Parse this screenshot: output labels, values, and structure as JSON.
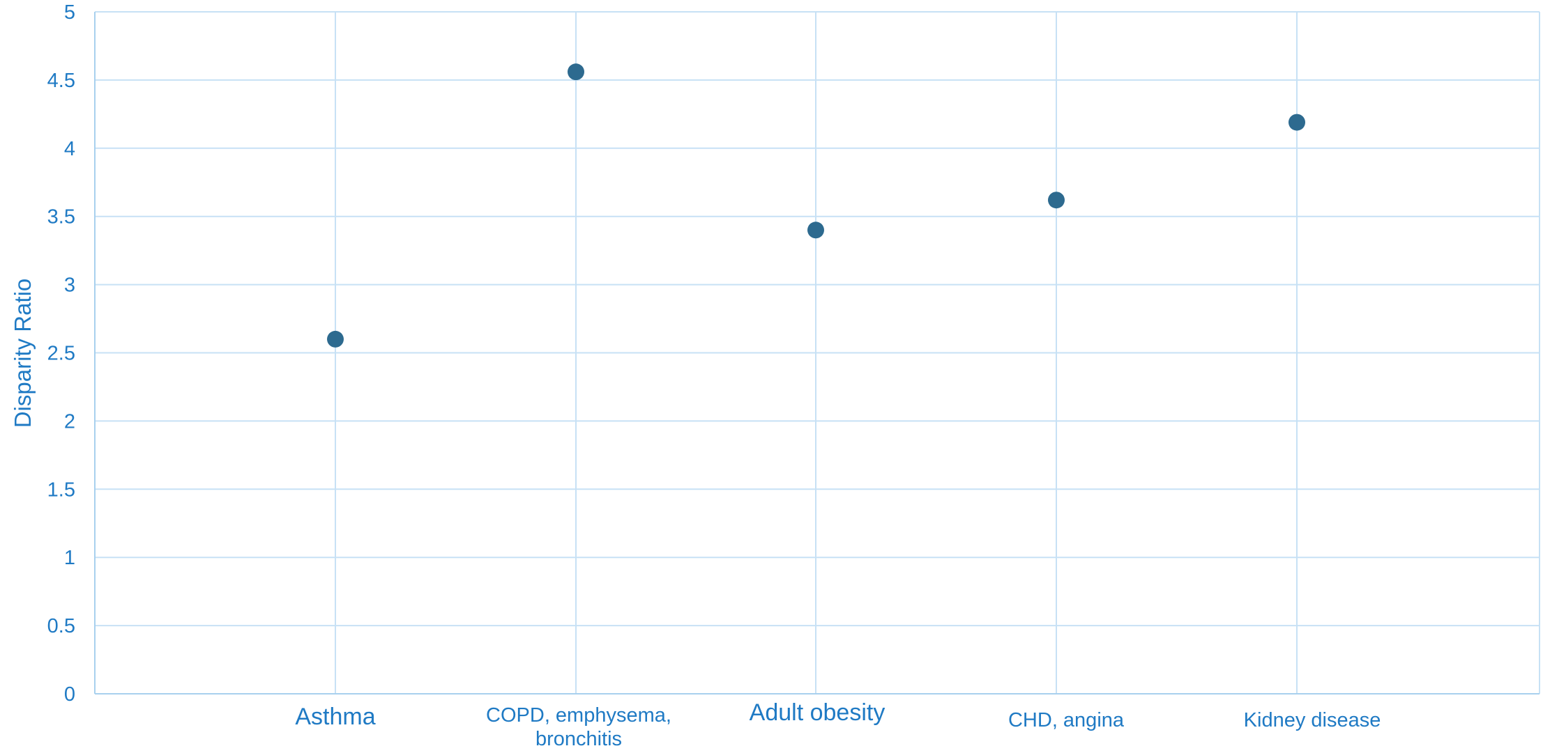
{
  "chart_data": {
    "type": "scatter",
    "title": "",
    "xlabel": "",
    "ylabel": "Disparity Ratio",
    "ylim": [
      0,
      5
    ],
    "yticks": [
      0,
      0.5,
      1,
      1.5,
      2,
      2.5,
      3,
      3.5,
      4,
      4.5,
      5
    ],
    "categories": [
      [
        "Asthma"
      ],
      [
        "COPD, emphysema,",
        "bronchitis"
      ],
      [
        "Adult obesity"
      ],
      [
        "CHD, angina"
      ],
      [
        "Kidney disease"
      ]
    ],
    "values": [
      2.6,
      4.56,
      3.4,
      3.62,
      4.19
    ],
    "grid": true,
    "legend": "none",
    "colors": {
      "marker": "#2d6a8f",
      "grid": "#c7e1f5",
      "axis": "#a8d0ee",
      "text": "#1f7ac4"
    }
  }
}
